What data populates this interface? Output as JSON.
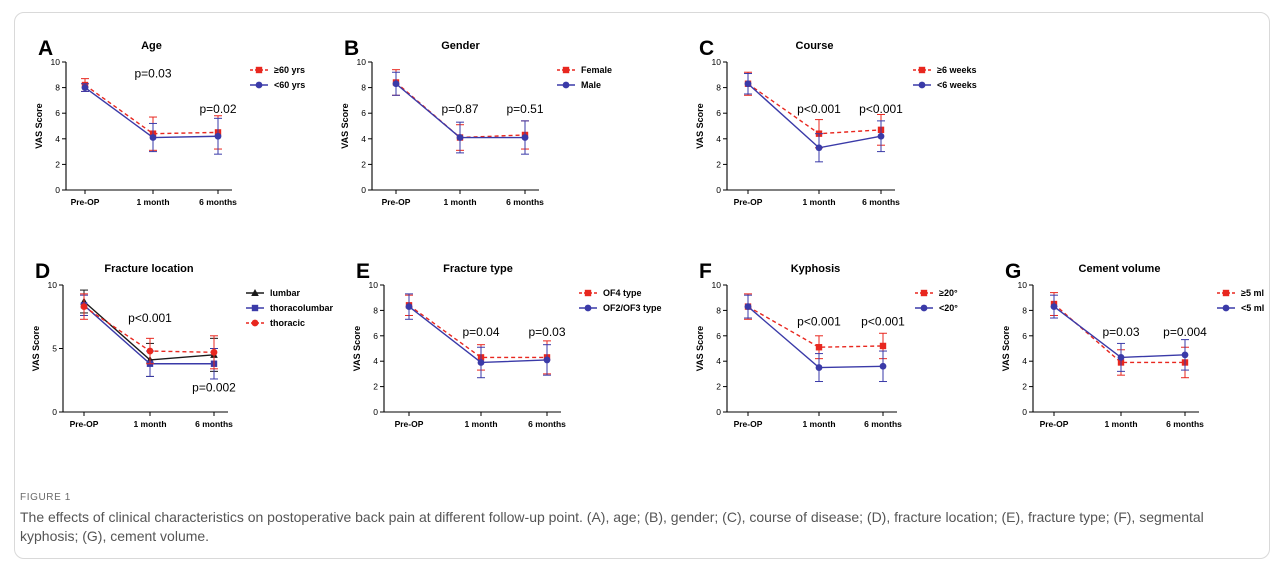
{
  "caption": {
    "label": "FIGURE 1",
    "text": "The effects of clinical characteristics on postoperative back pain at different follow-up point. (A), age; (B), gender; (C), course of disease; (D), fracture location; (E),  fracture type; (F), segmental kyphosis; (G), cement volume."
  },
  "colors": {
    "red": "#e8271f",
    "blue": "#3a3aa8",
    "black": "#1a1a1a"
  },
  "chart_data": [
    {
      "panel": "A",
      "type": "line",
      "title": "Age",
      "ylabel": "VAS Score",
      "xlabel": "",
      "categories": [
        "Pre-OP",
        "1 month",
        "6 months"
      ],
      "ylim": [
        0,
        10
      ],
      "yticks": [
        "0",
        "2",
        "4",
        "6",
        "8",
        "10"
      ],
      "grid": false,
      "legend": "top-right",
      "series": [
        {
          "name": "≥60 yrs",
          "color": "red",
          "marker": "square",
          "dashed": true,
          "values": [
            8.2,
            4.4,
            4.5
          ],
          "err": [
            0.5,
            1.3,
            1.3
          ]
        },
        {
          "name": "<60 yrs",
          "color": "blue",
          "marker": "circle",
          "dashed": false,
          "values": [
            8.0,
            4.1,
            4.2
          ],
          "err": [
            0.3,
            1.1,
            1.4
          ]
        }
      ],
      "pvalues": [
        {
          "text": "p=0.03",
          "at": 1,
          "y": 8.8
        },
        {
          "text": "p=0.02",
          "at": 2,
          "y": 6.0
        }
      ]
    },
    {
      "panel": "B",
      "type": "line",
      "title": "Gender",
      "ylabel": "VAS Score",
      "xlabel": "",
      "categories": [
        "Pre-OP",
        "1 month",
        "6 months"
      ],
      "ylim": [
        0,
        10
      ],
      "yticks": [
        "0",
        "2",
        "4",
        "6",
        "8",
        "10"
      ],
      "grid": false,
      "legend": "top-right",
      "series": [
        {
          "name": "Female",
          "color": "red",
          "marker": "square",
          "dashed": true,
          "values": [
            8.4,
            4.1,
            4.3
          ],
          "err": [
            1.0,
            1.0,
            1.1
          ]
        },
        {
          "name": "Male",
          "color": "blue",
          "marker": "circle",
          "dashed": false,
          "values": [
            8.3,
            4.1,
            4.1
          ],
          "err": [
            0.9,
            1.2,
            1.3
          ]
        }
      ],
      "pvalues": [
        {
          "text": "p=0.87",
          "at": 1,
          "y": 6.0
        },
        {
          "text": "p=0.51",
          "at": 2,
          "y": 6.0
        }
      ]
    },
    {
      "panel": "C",
      "type": "line",
      "title": "Course",
      "ylabel": "VAS Score",
      "xlabel": "",
      "categories": [
        "Pre-OP",
        "1 month",
        "6 months"
      ],
      "ylim": [
        0,
        10
      ],
      "yticks": [
        "0",
        "2",
        "4",
        "6",
        "8",
        "10"
      ],
      "grid": false,
      "legend": "top-right",
      "series": [
        {
          "name": "≥6 weeks",
          "color": "red",
          "marker": "square",
          "dashed": true,
          "values": [
            8.3,
            4.4,
            4.7
          ],
          "err": [
            0.9,
            1.1,
            1.2
          ]
        },
        {
          "name": "<6 weeks",
          "color": "blue",
          "marker": "circle",
          "dashed": false,
          "values": [
            8.3,
            3.3,
            4.2
          ],
          "err": [
            0.8,
            1.1,
            1.2
          ]
        }
      ],
      "pvalues": [
        {
          "text": "p<0.001",
          "at": 1,
          "y": 6.0
        },
        {
          "text": "p<0.001",
          "at": 2,
          "y": 6.0
        }
      ]
    },
    {
      "panel": "D",
      "type": "line",
      "title": "Fracture location",
      "ylabel": "VAS Score",
      "xlabel": "",
      "categories": [
        "Pre-OP",
        "1 month",
        "6 months"
      ],
      "ylim": [
        0,
        10
      ],
      "yticks": [
        "0",
        "5",
        "10"
      ],
      "grid": false,
      "legend": "top-right",
      "series": [
        {
          "name": "lumbar",
          "color": "black",
          "marker": "triangle",
          "dashed": false,
          "values": [
            8.7,
            4.1,
            4.5
          ],
          "err": [
            0.9,
            1.3,
            1.3
          ]
        },
        {
          "name": "thoracolumbar",
          "color": "blue",
          "marker": "square",
          "dashed": false,
          "values": [
            8.4,
            3.8,
            3.8
          ],
          "err": [
            0.8,
            1.0,
            1.2
          ]
        },
        {
          "name": "thoracic",
          "color": "red",
          "marker": "circle",
          "dashed": true,
          "values": [
            8.3,
            4.8,
            4.7
          ],
          "err": [
            1.0,
            1.0,
            1.3
          ]
        }
      ],
      "pvalues": [
        {
          "text": "p<0.001",
          "at": 1,
          "y": 7.1
        },
        {
          "text": "p=0.002",
          "at": 2,
          "y": 1.6
        }
      ]
    },
    {
      "panel": "E",
      "type": "line",
      "title": "Fracture type",
      "ylabel": "VAS Score",
      "xlabel": "",
      "categories": [
        "Pre-OP",
        "1 month",
        "6 months"
      ],
      "ylim": [
        0,
        10
      ],
      "yticks": [
        "0",
        "2",
        "4",
        "6",
        "8",
        "10"
      ],
      "grid": false,
      "legend": "top-right",
      "series": [
        {
          "name": "OF4 type",
          "color": "red",
          "marker": "square",
          "dashed": true,
          "values": [
            8.4,
            4.3,
            4.3
          ],
          "err": [
            0.8,
            1.0,
            1.3
          ]
        },
        {
          "name": "OF2/OF3 type",
          "color": "blue",
          "marker": "circle",
          "dashed": false,
          "values": [
            8.3,
            3.9,
            4.1
          ],
          "err": [
            1.0,
            1.2,
            1.2
          ]
        }
      ],
      "pvalues": [
        {
          "text": "p=0.04",
          "at": 1,
          "y": 6.0
        },
        {
          "text": "p=0.03",
          "at": 2,
          "y": 6.0
        }
      ]
    },
    {
      "panel": "F",
      "type": "line",
      "title": "Kyphosis",
      "ylabel": "VAS Score",
      "xlabel": "",
      "categories": [
        "Pre-OP",
        "1 month",
        "6 months"
      ],
      "ylim": [
        0,
        10
      ],
      "yticks": [
        "0",
        "2",
        "4",
        "6",
        "8",
        "10"
      ],
      "grid": false,
      "legend": "top-right",
      "series": [
        {
          "name": "≥20°",
          "color": "red",
          "marker": "square",
          "dashed": true,
          "values": [
            8.3,
            5.1,
            5.2
          ],
          "err": [
            1.0,
            0.9,
            1.0
          ]
        },
        {
          "name": "<20°",
          "color": "blue",
          "marker": "circle",
          "dashed": false,
          "values": [
            8.3,
            3.5,
            3.6
          ],
          "err": [
            0.9,
            1.1,
            1.2
          ]
        }
      ],
      "pvalues": [
        {
          "text": "p<0.001",
          "at": 1,
          "y": 6.8
        },
        {
          "text": "p<0.001",
          "at": 2,
          "y": 6.8
        }
      ]
    },
    {
      "panel": "G",
      "type": "line",
      "title": "Cement volume",
      "ylabel": "VAS Score",
      "xlabel": "",
      "categories": [
        "Pre-OP",
        "1 month",
        "6 months"
      ],
      "ylim": [
        0,
        10
      ],
      "yticks": [
        "0",
        "2",
        "4",
        "6",
        "8",
        "10"
      ],
      "grid": false,
      "legend": "top-right",
      "series": [
        {
          "name": "≥5 ml",
          "color": "red",
          "marker": "square",
          "dashed": true,
          "values": [
            8.5,
            3.9,
            3.9
          ],
          "err": [
            0.9,
            1.0,
            1.2
          ]
        },
        {
          "name": "<5 ml",
          "color": "blue",
          "marker": "circle",
          "dashed": false,
          "values": [
            8.3,
            4.3,
            4.5
          ],
          "err": [
            0.9,
            1.1,
            1.2
          ]
        }
      ],
      "pvalues": [
        {
          "text": "p=0.03",
          "at": 1,
          "y": 6.0
        },
        {
          "text": "p=0.004",
          "at": 2,
          "y": 6.0
        }
      ]
    }
  ]
}
